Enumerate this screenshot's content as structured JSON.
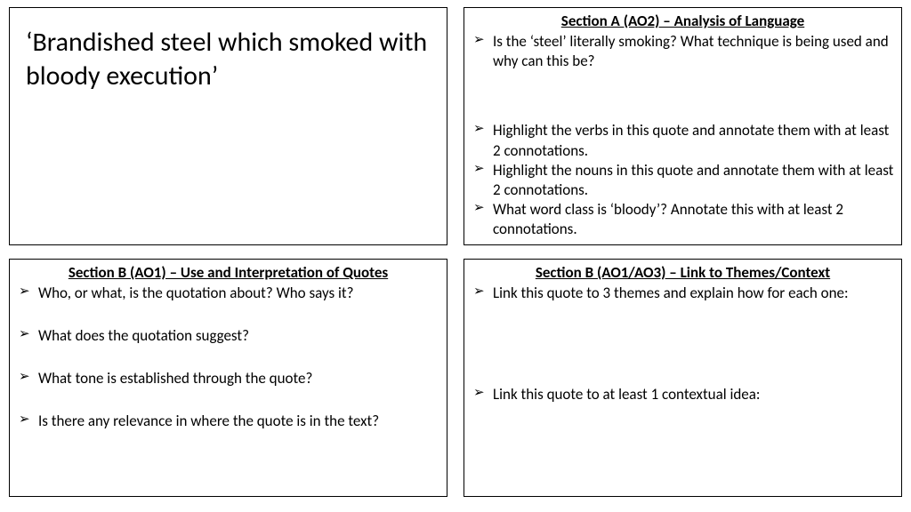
{
  "quote": "‘Brandished steel which smoked with bloody execution’",
  "sectionA": {
    "heading": "Section A (AO2) – Analysis of Language",
    "items": [
      "Is the ‘steel’ literally smoking? What technique is being used and why can this be?",
      "Highlight the verbs in this quote and annotate them with at least 2 connotations.",
      "Highlight the nouns in this quote and annotate them with at least 2 connotations.",
      "What word class is ‘bloody’? Annotate this with at least 2 connotations."
    ]
  },
  "sectionB_left": {
    "heading": "Section B (AO1) – Use and Interpretation of Quotes",
    "items": [
      "Who, or what, is the quotation about? Who says it?",
      "What does the quotation suggest?",
      "What tone is established through the quote?",
      "Is there any relevance in where the quote is in the text?"
    ]
  },
  "sectionB_right": {
    "heading": "Section B (AO1/AO3) – Link to Themes/Context",
    "items": [
      "Link this quote to 3 themes and explain how for each one:",
      "Link this quote to at least 1 contextual idea:"
    ]
  }
}
